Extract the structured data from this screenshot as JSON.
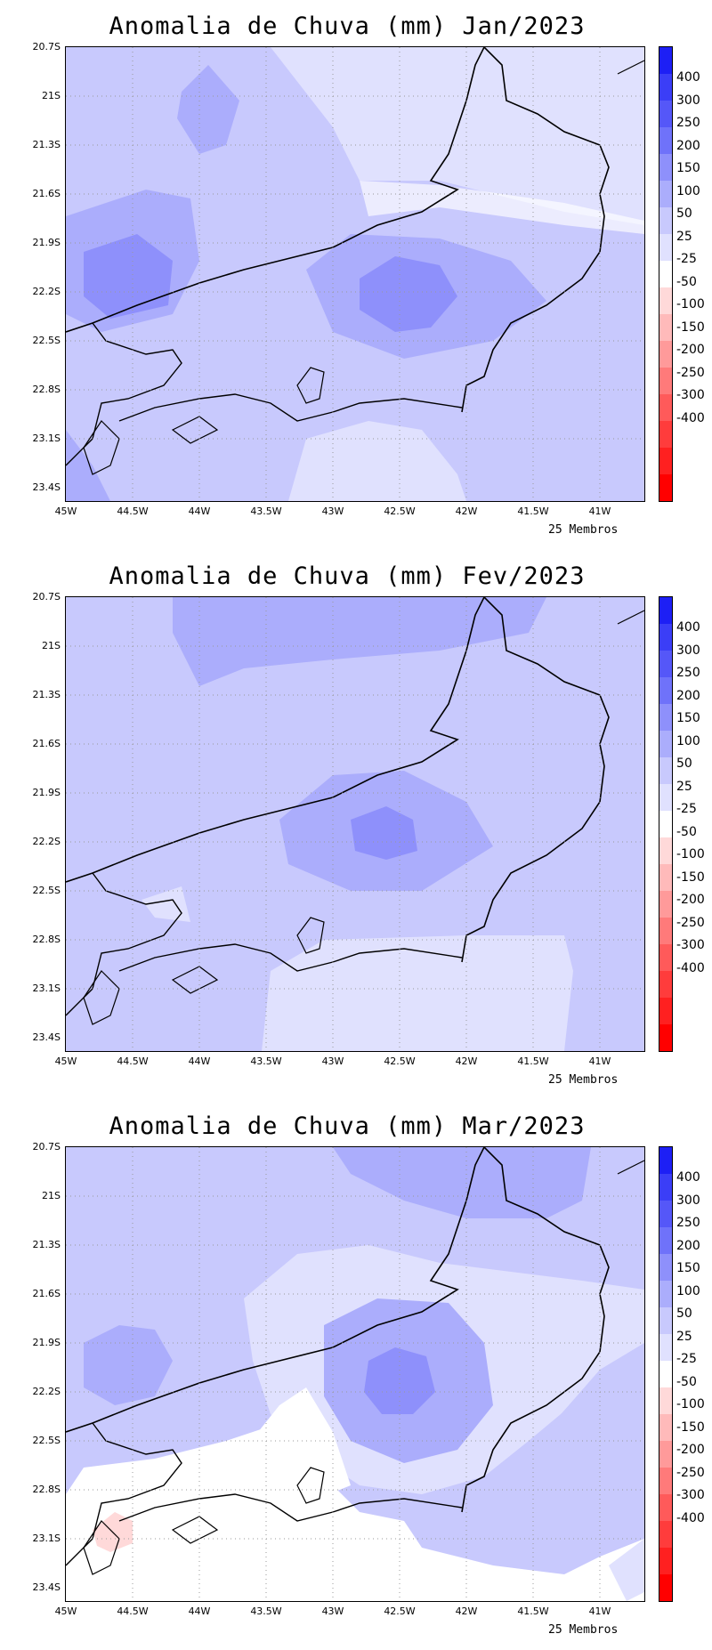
{
  "footer_text": "25 Membros",
  "x_ticks": [
    "45W",
    "44.5W",
    "44W",
    "43.5W",
    "43W",
    "42.5W",
    "42W",
    "41.5W",
    "41W"
  ],
  "y_ticks": [
    "20.7S",
    "21S",
    "21.3S",
    "21.6S",
    "21.9S",
    "22.2S",
    "22.5S",
    "22.8S",
    "23.1S",
    "23.4S"
  ],
  "colorbar": {
    "labels": [
      "400",
      "300",
      "250",
      "200",
      "150",
      "100",
      "50",
      "25",
      "-25",
      "-50",
      "-100",
      "-150",
      "-200",
      "-250",
      "-300",
      "-400"
    ],
    "colors": [
      "#1d1ff5",
      "#3b3ef7",
      "#5557f8",
      "#6f72fa",
      "#8e90fb",
      "#abadfc",
      "#c8c9fd",
      "#e0e1fe",
      "#ffffff",
      "#ffd9d9",
      "#ffbaba",
      "#ff9a9a",
      "#ff7a7a",
      "#ff5a5a",
      "#ff3c3c",
      "#ff2020",
      "#ff0000"
    ]
  },
  "panels": [
    {
      "title": "Anomalia de Chuva (mm) Jan/2023"
    },
    {
      "title": "Anomalia de Chuva (mm) Fev/2023"
    },
    {
      "title": "Anomalia de Chuva (mm) Mar/2023"
    }
  ]
}
